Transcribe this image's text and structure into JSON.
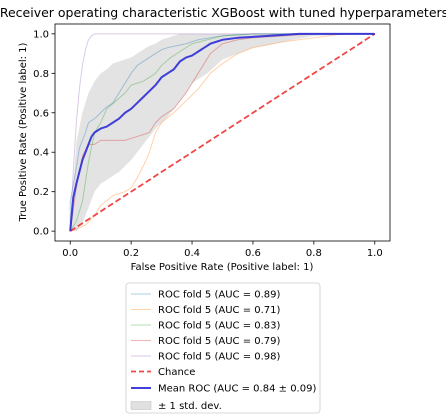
{
  "chart_data": {
    "type": "line",
    "title": "Receiver operating characteristic XGBoost with tuned hyperparameters",
    "xlabel": "False Positive Rate (Positive label: 1)",
    "ylabel": "True Positive Rate (Positive label: 1)",
    "xlim": [
      -0.05,
      1.05
    ],
    "ylim": [
      -0.05,
      1.05
    ],
    "xticks": [
      "0.0",
      "0.2",
      "0.4",
      "0.6",
      "0.8",
      "1.0"
    ],
    "yticks": [
      "0.0",
      "0.2",
      "0.4",
      "0.6",
      "0.8",
      "1.0"
    ],
    "legend_position": "below the plot",
    "series": [
      {
        "name": "ROC fold 5 (AUC = 0.89)",
        "color": "#1f77b4",
        "style": "thin-transparent",
        "x": [
          0,
          0,
          0.02,
          0.03,
          0.05,
          0.06,
          0.08,
          0.1,
          0.12,
          0.14,
          0.16,
          0.18,
          0.2,
          0.22,
          0.24,
          0.26,
          0.28,
          0.3,
          0.32,
          0.35,
          0.38,
          0.42,
          0.46,
          0.5,
          0.6,
          0.8,
          1.0
        ],
        "y": [
          0,
          0.15,
          0.32,
          0.42,
          0.5,
          0.55,
          0.57,
          0.6,
          0.63,
          0.65,
          0.7,
          0.75,
          0.8,
          0.84,
          0.86,
          0.88,
          0.9,
          0.92,
          0.93,
          0.94,
          0.95,
          0.97,
          0.98,
          0.99,
          1.0,
          1.0,
          1.0
        ]
      },
      {
        "name": "ROC fold 5 (AUC = 0.71)",
        "color": "#ff7f0e",
        "style": "thin-transparent",
        "x": [
          0,
          0.02,
          0.05,
          0.08,
          0.1,
          0.14,
          0.18,
          0.2,
          0.22,
          0.24,
          0.26,
          0.28,
          0.3,
          0.34,
          0.38,
          0.42,
          0.46,
          0.5,
          0.55,
          0.6,
          0.7,
          0.8,
          0.9,
          1.0
        ],
        "y": [
          0,
          0.01,
          0.03,
          0.08,
          0.13,
          0.18,
          0.2,
          0.22,
          0.27,
          0.33,
          0.4,
          0.5,
          0.55,
          0.6,
          0.66,
          0.72,
          0.8,
          0.85,
          0.9,
          0.93,
          0.96,
          0.98,
          1.0,
          1.0
        ]
      },
      {
        "name": "ROC fold 5 (AUC = 0.83)",
        "color": "#2ca02c",
        "style": "thin-transparent",
        "x": [
          0,
          0.02,
          0.04,
          0.06,
          0.08,
          0.1,
          0.12,
          0.15,
          0.18,
          0.2,
          0.24,
          0.28,
          0.3,
          0.33,
          0.36,
          0.4,
          0.45,
          0.5,
          0.6,
          0.7,
          0.8,
          1.0
        ],
        "y": [
          0,
          0.05,
          0.15,
          0.35,
          0.5,
          0.55,
          0.62,
          0.66,
          0.7,
          0.74,
          0.76,
          0.8,
          0.84,
          0.88,
          0.91,
          0.95,
          0.97,
          0.99,
          1.0,
          1.0,
          1.0,
          1.0
        ]
      },
      {
        "name": "ROC fold 5 (AUC = 0.79)",
        "color": "#d62728",
        "style": "thin-transparent",
        "x": [
          0,
          0.02,
          0.04,
          0.06,
          0.08,
          0.1,
          0.12,
          0.14,
          0.18,
          0.22,
          0.26,
          0.28,
          0.3,
          0.34,
          0.38,
          0.42,
          0.46,
          0.5,
          0.55,
          0.6,
          0.7,
          0.8,
          1.0
        ],
        "y": [
          0,
          0.22,
          0.38,
          0.44,
          0.44,
          0.46,
          0.46,
          0.46,
          0.46,
          0.48,
          0.5,
          0.55,
          0.58,
          0.62,
          0.7,
          0.8,
          0.9,
          0.95,
          0.97,
          0.98,
          0.99,
          1.0,
          1.0
        ]
      },
      {
        "name": "ROC fold 5 (AUC = 0.98)",
        "color": "#9467bd",
        "style": "thin-transparent",
        "x": [
          0,
          0.01,
          0.02,
          0.03,
          0.04,
          0.05,
          0.06,
          0.07,
          0.08,
          0.1,
          0.15,
          0.2,
          0.4,
          0.6,
          1.0
        ],
        "y": [
          0,
          0.3,
          0.55,
          0.72,
          0.84,
          0.92,
          0.97,
          0.99,
          1.0,
          1.0,
          1.0,
          1.0,
          1.0,
          1.0,
          1.0
        ]
      },
      {
        "name": "Chance",
        "color": "#ee3333",
        "style": "dashed",
        "x": [
          0,
          1
        ],
        "y": [
          0,
          1
        ]
      },
      {
        "name": "Mean ROC (AUC = 0.84 ± 0.09)",
        "color": "#2b2bd6",
        "style": "thick",
        "x": [
          0,
          0.01,
          0.02,
          0.03,
          0.04,
          0.05,
          0.06,
          0.07,
          0.08,
          0.1,
          0.12,
          0.14,
          0.16,
          0.18,
          0.2,
          0.22,
          0.24,
          0.26,
          0.28,
          0.3,
          0.32,
          0.34,
          0.36,
          0.38,
          0.4,
          0.42,
          0.44,
          0.46,
          0.48,
          0.5,
          0.55,
          0.6,
          0.65,
          0.7,
          0.75,
          0.8,
          0.9,
          1.0
        ],
        "y": [
          0,
          0.17,
          0.24,
          0.3,
          0.36,
          0.4,
          0.44,
          0.48,
          0.5,
          0.52,
          0.53,
          0.55,
          0.57,
          0.6,
          0.62,
          0.65,
          0.68,
          0.71,
          0.74,
          0.78,
          0.8,
          0.82,
          0.86,
          0.88,
          0.89,
          0.91,
          0.93,
          0.95,
          0.96,
          0.97,
          0.98,
          0.985,
          0.99,
          0.995,
          1.0,
          1.0,
          1.0,
          1.0
        ]
      }
    ],
    "std_band": {
      "name": "± 1 std. dev.",
      "color": "#cccccc",
      "x": [
        0,
        0.02,
        0.04,
        0.06,
        0.08,
        0.1,
        0.12,
        0.14,
        0.16,
        0.18,
        0.2,
        0.22,
        0.24,
        0.26,
        0.28,
        0.3,
        0.32,
        0.34,
        0.36,
        0.38,
        0.4,
        0.45,
        0.5,
        0.55,
        0.6,
        0.7,
        0.8,
        1.0
      ],
      "upper": [
        0,
        0.45,
        0.6,
        0.7,
        0.76,
        0.8,
        0.82,
        0.85,
        0.86,
        0.87,
        0.88,
        0.9,
        0.92,
        0.94,
        0.95,
        0.97,
        0.98,
        0.99,
        1.0,
        1.0,
        1.0,
        1.0,
        1.0,
        1.0,
        1.0,
        1.0,
        1.0,
        1.0
      ],
      "lower": [
        0,
        0.0,
        0.04,
        0.12,
        0.2,
        0.24,
        0.26,
        0.28,
        0.3,
        0.33,
        0.36,
        0.4,
        0.44,
        0.48,
        0.52,
        0.55,
        0.58,
        0.62,
        0.66,
        0.7,
        0.75,
        0.8,
        0.87,
        0.9,
        0.93,
        0.96,
        0.99,
        1.0
      ]
    }
  }
}
